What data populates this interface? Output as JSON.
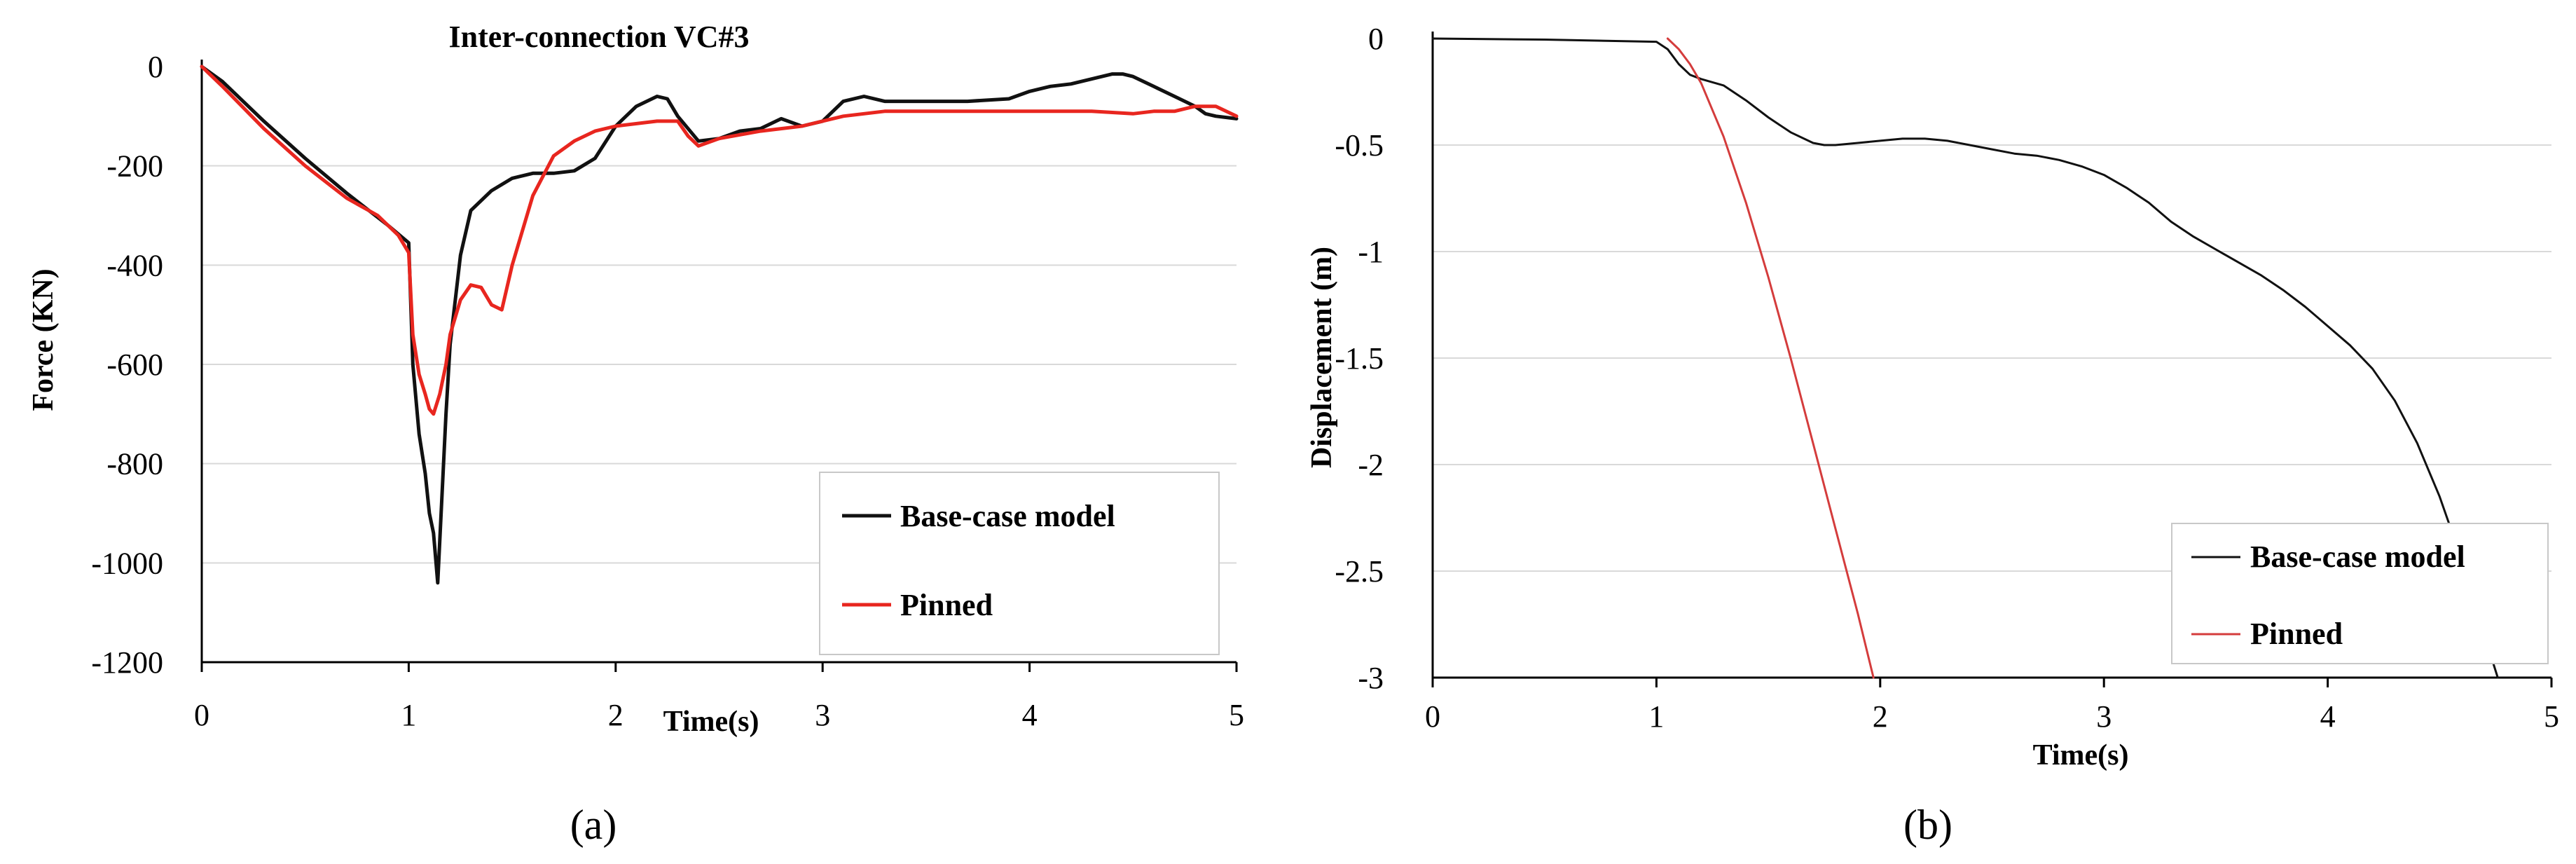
{
  "chart_data": [
    {
      "type": "line",
      "panel_label": "(a)",
      "title": "Inter-connection VC#3",
      "xlabel": "Time(s)",
      "ylabel": "Force (KN)",
      "xlim": [
        0,
        5
      ],
      "ylim": [
        -1200,
        0
      ],
      "xticks": [
        "0",
        "1",
        "2",
        "3",
        "4",
        "5"
      ],
      "yticks": [
        "0",
        "-200",
        "-400",
        "-600",
        "-800",
        "-1000",
        "-1200"
      ],
      "grid": "horizontal",
      "legend_position": "bottom-right",
      "colors": {
        "base": "#111111",
        "pinned": "#e8261f"
      },
      "series": [
        {
          "name": "Base-case model",
          "x": [
            0,
            0.1,
            0.3,
            0.5,
            0.7,
            0.9,
            1.0,
            1.02,
            1.05,
            1.08,
            1.1,
            1.12,
            1.14,
            1.16,
            1.18,
            1.2,
            1.25,
            1.3,
            1.4,
            1.5,
            1.6,
            1.7,
            1.8,
            1.9,
            2.0,
            2.1,
            2.2,
            2.25,
            2.3,
            2.4,
            2.5,
            2.6,
            2.7,
            2.8,
            2.9,
            3.0,
            3.1,
            3.2,
            3.3,
            3.5,
            3.7,
            3.9,
            4.0,
            4.1,
            4.2,
            4.3,
            4.4,
            4.45,
            4.5,
            4.6,
            4.7,
            4.8,
            4.85,
            4.9,
            5.0
          ],
          "y": [
            0,
            -30,
            -110,
            -185,
            -255,
            -320,
            -355,
            -600,
            -740,
            -820,
            -900,
            -940,
            -1040,
            -870,
            -700,
            -560,
            -380,
            -290,
            -250,
            -225,
            -215,
            -215,
            -210,
            -185,
            -120,
            -80,
            -60,
            -65,
            -100,
            -150,
            -145,
            -130,
            -125,
            -105,
            -120,
            -110,
            -70,
            -60,
            -70,
            -70,
            -70,
            -65,
            -50,
            -40,
            -35,
            -25,
            -15,
            -15,
            -20,
            -40,
            -60,
            -80,
            -95,
            -100,
            -105
          ]
        },
        {
          "name": "Pinned",
          "x": [
            0,
            0.1,
            0.3,
            0.5,
            0.7,
            0.85,
            0.95,
            1.0,
            1.02,
            1.05,
            1.08,
            1.1,
            1.12,
            1.15,
            1.18,
            1.2,
            1.25,
            1.3,
            1.35,
            1.4,
            1.45,
            1.5,
            1.6,
            1.7,
            1.8,
            1.9,
            2.0,
            2.2,
            2.3,
            2.35,
            2.4,
            2.5,
            2.7,
            2.9,
            3.1,
            3.3,
            3.5,
            3.7,
            3.9,
            4.1,
            4.3,
            4.5,
            4.6,
            4.7,
            4.8,
            4.9,
            5.0
          ],
          "y": [
            0,
            -40,
            -125,
            -200,
            -265,
            -300,
            -340,
            -375,
            -540,
            -620,
            -660,
            -690,
            -700,
            -660,
            -600,
            -540,
            -470,
            -440,
            -445,
            -480,
            -490,
            -400,
            -260,
            -180,
            -150,
            -130,
            -120,
            -110,
            -110,
            -140,
            -160,
            -145,
            -130,
            -120,
            -100,
            -90,
            -90,
            -90,
            -90,
            -90,
            -90,
            -95,
            -90,
            -90,
            -80,
            -80,
            -100
          ]
        }
      ]
    },
    {
      "type": "line",
      "panel_label": "(b)",
      "title": "",
      "xlabel": "Time(s)",
      "ylabel": "Displacement (m)",
      "xlim": [
        0,
        5
      ],
      "ylim": [
        -3,
        0
      ],
      "xticks": [
        "0",
        "1",
        "2",
        "3",
        "4",
        "5"
      ],
      "yticks": [
        "0",
        "-0.5",
        "-1",
        "-1.5",
        "-2",
        "-2.5",
        "-3"
      ],
      "grid": "horizontal",
      "legend_position": "bottom-right",
      "colors": {
        "base": "#111111",
        "pinned": "#d43c3c"
      },
      "series": [
        {
          "name": "Base-case model",
          "x": [
            0,
            0.5,
            1.0,
            1.05,
            1.1,
            1.15,
            1.2,
            1.3,
            1.4,
            1.5,
            1.6,
            1.7,
            1.75,
            1.8,
            1.9,
            2.0,
            2.1,
            2.2,
            2.3,
            2.4,
            2.5,
            2.6,
            2.7,
            2.8,
            2.9,
            3.0,
            3.1,
            3.2,
            3.3,
            3.4,
            3.5,
            3.6,
            3.7,
            3.8,
            3.9,
            4.0,
            4.1,
            4.2,
            4.3,
            4.4,
            4.5,
            4.6,
            4.7,
            4.76
          ],
          "y": [
            0,
            -0.005,
            -0.015,
            -0.05,
            -0.12,
            -0.17,
            -0.19,
            -0.22,
            -0.29,
            -0.37,
            -0.44,
            -0.49,
            -0.5,
            -0.5,
            -0.49,
            -0.48,
            -0.47,
            -0.47,
            -0.48,
            -0.5,
            -0.52,
            -0.54,
            -0.55,
            -0.57,
            -0.6,
            -0.64,
            -0.7,
            -0.77,
            -0.86,
            -0.93,
            -0.99,
            -1.05,
            -1.11,
            -1.18,
            -1.26,
            -1.35,
            -1.44,
            -1.55,
            -1.7,
            -1.9,
            -2.15,
            -2.45,
            -2.8,
            -3.0
          ]
        },
        {
          "name": "Pinned",
          "x": [
            1.05,
            1.1,
            1.15,
            1.2,
            1.3,
            1.4,
            1.5,
            1.6,
            1.7,
            1.8,
            1.9,
            1.97
          ],
          "y": [
            0,
            -0.05,
            -0.12,
            -0.21,
            -0.46,
            -0.77,
            -1.12,
            -1.5,
            -1.9,
            -2.3,
            -2.7,
            -3.0
          ]
        }
      ]
    }
  ]
}
